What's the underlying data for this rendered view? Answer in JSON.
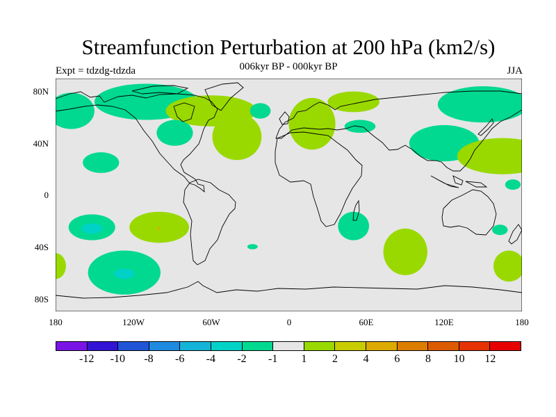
{
  "title": "Streamfunction Perturbation at 200 hPa (km2/s)",
  "subtitle": "006kyr BP - 000kyr BP",
  "experiment": "Expt = tdzdg-tdzda",
  "season": "JJA",
  "lat_labels": [
    "80N",
    "40N",
    "0",
    "40S",
    "80S"
  ],
  "lon_labels": [
    "180",
    "120W",
    "60W",
    "0",
    "60E",
    "120E",
    "180"
  ],
  "colorbar": {
    "colors": [
      "#7a14e6",
      "#3214d4",
      "#1f55d6",
      "#1e8ae0",
      "#14b4d8",
      "#00d2c8",
      "#00d98f",
      "#e6e6e6",
      "#99d900",
      "#c8cd00",
      "#dcaa00",
      "#dc7d00",
      "#dc5a00",
      "#e63200",
      "#e60000"
    ],
    "labels": [
      "-12",
      "-10",
      "-8",
      "-6",
      "-4",
      "-2",
      "-1",
      "1",
      "2",
      "4",
      "6",
      "8",
      "10",
      "12"
    ]
  },
  "chart_data": {
    "type": "map",
    "projection": "cylindrical-equidistant",
    "lon_range": [
      -180,
      180
    ],
    "lat_range": [
      -90,
      90
    ],
    "units": "km2/s",
    "field": "streamfunction perturbation, 200 hPa",
    "anomalies": [
      {
        "name": "arctic-n-america",
        "class": "-1",
        "lon": -110,
        "lat": 72,
        "rx": 40,
        "ry": 14
      },
      {
        "name": "greenland-pos",
        "class": "1",
        "lon": -60,
        "lat": 65,
        "rx": 35,
        "ry": 12
      },
      {
        "name": "alaska-neg",
        "class": "-1",
        "lon": -168,
        "lat": 65,
        "rx": 18,
        "ry": 14
      },
      {
        "name": "east-canada-neg",
        "class": "-1",
        "lon": -88,
        "lat": 48,
        "rx": 14,
        "ry": 10
      },
      {
        "name": "nw-atlantic-neg",
        "class": "-1",
        "lon": -22,
        "lat": 65,
        "rx": 8,
        "ry": 6
      },
      {
        "name": "n-atlantic-pos",
        "class": "1",
        "lon": -40,
        "lat": 45,
        "rx": 19,
        "ry": 18
      },
      {
        "name": "europe-pos",
        "class": "1",
        "lon": 18,
        "lat": 55,
        "rx": 18,
        "ry": 20
      },
      {
        "name": "scandinavia-pos",
        "class": "1",
        "lon": 50,
        "lat": 72,
        "rx": 20,
        "ry": 8
      },
      {
        "name": "siberia-neg",
        "class": "-1",
        "lon": 55,
        "lat": 53,
        "rx": 12,
        "ry": 5
      },
      {
        "name": "arctic-asia-neg",
        "class": "-1",
        "lon": 150,
        "lat": 70,
        "rx": 35,
        "ry": 14
      },
      {
        "name": "east-asia-neg",
        "class": "-1",
        "lon": 120,
        "lat": 40,
        "rx": 27,
        "ry": 14
      },
      {
        "name": "n-pacific-pos",
        "class": "1",
        "lon": 165,
        "lat": 30,
        "rx": 35,
        "ry": 14
      },
      {
        "name": "ne-pacific-neg",
        "class": "-1",
        "lon": -145,
        "lat": 25,
        "rx": 14,
        "ry": 8
      },
      {
        "name": "s-pacific-neg",
        "class": "-1",
        "lon": -152,
        "lat": -25,
        "rx": 18,
        "ry": 10
      },
      {
        "name": "s-pacific-neg-core",
        "class": "-2",
        "lon": -152,
        "lat": -26,
        "rx": 8,
        "ry": 4
      },
      {
        "name": "se-pacific-pos",
        "class": "1",
        "lon": -100,
        "lat": -25,
        "rx": 23,
        "ry": 12
      },
      {
        "name": "se-pacific-pos-core",
        "class": "4",
        "lon": -100,
        "lat": -26,
        "rx": 1,
        "ry": 1
      },
      {
        "name": "s-ocean-pacific-neg",
        "class": "-1",
        "lon": -127,
        "lat": -60,
        "rx": 28,
        "ry": 17
      },
      {
        "name": "s-ocean-pacific-core",
        "class": "-2",
        "lon": -127,
        "lat": -61,
        "rx": 8,
        "ry": 4
      },
      {
        "name": "far-sw-pacific-pos",
        "class": "1",
        "lon": -180,
        "lat": -55,
        "rx": 8,
        "ry": 10
      },
      {
        "name": "s-atlantic-neg",
        "class": "-1",
        "lon": -28,
        "lat": -40,
        "rx": 4,
        "ry": 2
      },
      {
        "name": "sw-indian-neg",
        "class": "-1",
        "lon": 50,
        "lat": -24,
        "rx": 12,
        "ry": 11
      },
      {
        "name": "s-indian-pos",
        "class": "1",
        "lon": 90,
        "lat": -44,
        "rx": 17,
        "ry": 18
      },
      {
        "name": "sw-pacific-pos",
        "class": "1",
        "lon": 170,
        "lat": -55,
        "rx": 12,
        "ry": 12
      },
      {
        "name": "aus-east-neg",
        "class": "-1",
        "lon": 163,
        "lat": -27,
        "rx": 6,
        "ry": 4
      },
      {
        "name": "nw-pacific-neg",
        "class": "-1",
        "lon": 173,
        "lat": 8,
        "rx": 6,
        "ry": 4
      }
    ]
  }
}
